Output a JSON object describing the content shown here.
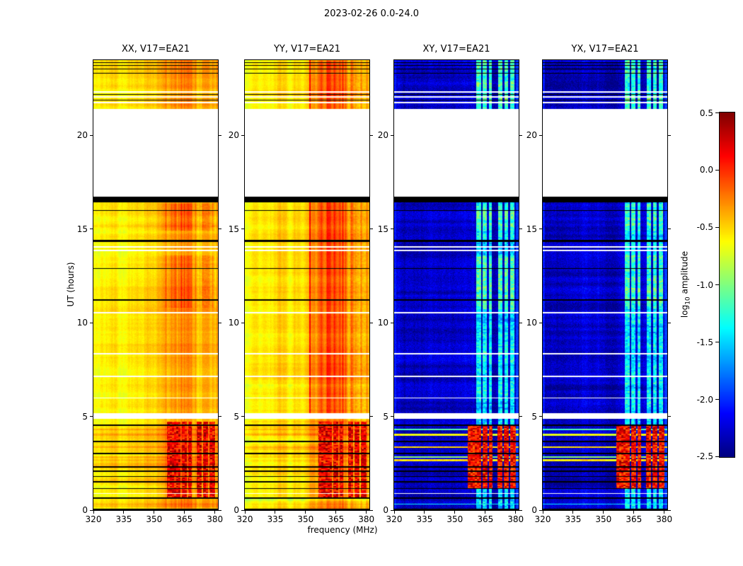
{
  "figure": {
    "title": "2023-02-26 0.0-24.0"
  },
  "chart_data": {
    "type": "heatmap",
    "title": "2023-02-26 0.0-24.0",
    "xlabel": "frequency (MHz)",
    "ylabel": "UT (hours)",
    "x_range_mhz": [
      320,
      381.5
    ],
    "y_range_hours": [
      0,
      24
    ],
    "x_ticks": [
      320,
      335,
      350,
      365,
      380
    ],
    "y_ticks": [
      0,
      5,
      10,
      15,
      20
    ],
    "no_data_color": "#ffffff",
    "flag_color": "#000000",
    "colorbar": {
      "label_prefix": "log",
      "label_sub": "10",
      "label_suffix": " amplitude",
      "colormap": "jet",
      "vmin": -2.5,
      "vmax": 0.5,
      "ticks": [
        {
          "v": 0.5,
          "label": "0.5"
        },
        {
          "v": 0.0,
          "label": "0.0"
        },
        {
          "v": -0.5,
          "label": "-0.5"
        },
        {
          "v": -1.0,
          "label": "-1.0"
        },
        {
          "v": -1.5,
          "label": "-1.5"
        },
        {
          "v": -2.0,
          "label": "-2.0"
        },
        {
          "v": -2.5,
          "label": "-2.5"
        }
      ]
    },
    "panels": [
      {
        "id": "xx",
        "title": "XX, V17=EA21",
        "kind": "parallel",
        "seed": 11,
        "base": -0.62,
        "tilt": 0.22,
        "band_gain": 0.26,
        "hot_ut": [
          [
            10.8,
            13.6
          ],
          [
            14.9,
            16.35
          ]
        ],
        "line352": false,
        "bottom_delta": 0.0
      },
      {
        "id": "yy",
        "title": "YY, V17=EA21",
        "kind": "parallel",
        "seed": 23,
        "base": -0.6,
        "tilt": 0.2,
        "band_gain": 0.28,
        "hot_ut": [
          [
            5.15,
            16.42
          ],
          [
            21.4,
            24.0
          ]
        ],
        "line352": true,
        "bottom_delta": -0.12
      },
      {
        "id": "xy",
        "title": "XY, V17=EA21",
        "kind": "cross",
        "seed": 37,
        "base": -2.3
      },
      {
        "id": "yx",
        "title": "YX, V17=EA21",
        "kind": "cross",
        "seed": 51,
        "base": -2.28
      }
    ],
    "segments": {
      "early": [
        0,
        4.85
      ],
      "main": [
        5.15,
        16.42
      ],
      "late": [
        21.4,
        24
      ]
    },
    "no_data_ut": [
      [
        4.85,
        5.15
      ],
      [
        16.72,
        21.4
      ],
      [
        0.85,
        0.9
      ],
      [
        5.95,
        6.0
      ],
      [
        7.1,
        7.16
      ],
      [
        8.28,
        8.36
      ],
      [
        10.48,
        10.56
      ],
      [
        13.82,
        13.9
      ],
      [
        14.02,
        14.08
      ],
      [
        21.72,
        21.8
      ],
      [
        22.02,
        22.1
      ],
      [
        22.28,
        22.36
      ]
    ],
    "flagged_ut": [
      [
        16.42,
        16.72
      ],
      [
        0.0,
        0.05
      ],
      [
        0.6,
        0.66
      ],
      [
        1.1,
        1.16
      ],
      [
        1.46,
        1.54
      ],
      [
        1.74,
        1.79
      ],
      [
        2.02,
        2.08
      ],
      [
        2.26,
        2.32
      ],
      [
        2.98,
        3.06
      ],
      [
        3.62,
        3.68
      ],
      [
        4.48,
        4.56
      ],
      [
        11.16,
        11.24
      ],
      [
        12.86,
        12.92
      ],
      [
        14.32,
        14.4
      ],
      [
        15.96,
        16.02
      ],
      [
        21.86,
        21.9
      ],
      [
        22.16,
        22.2
      ],
      [
        23.3,
        23.34
      ],
      [
        23.52,
        23.58
      ],
      [
        23.72,
        23.76
      ],
      [
        23.88,
        23.92
      ]
    ],
    "rfi_stripes_mhz": [
      [
        360.5,
        363.0
      ],
      [
        363.8,
        366.0
      ],
      [
        366.8,
        368.3
      ],
      [
        371.5,
        373.5
      ],
      [
        374.5,
        376.5
      ],
      [
        377.5,
        379.5
      ]
    ],
    "rfi_blocks_mhz": [
      [
        356.5,
        363.2
      ],
      [
        363.8,
        366.2
      ],
      [
        366.8,
        368.6
      ],
      [
        371.2,
        373.6
      ],
      [
        374.3,
        376.8
      ],
      [
        377.4,
        380.2
      ]
    ],
    "stripe_hot_ut": [
      [
        10.7,
        13.6
      ],
      [
        14.9,
        16.35
      ],
      [
        21.4,
        24.0
      ]
    ],
    "cross_hot_ut": [
      1.15,
      4.5
    ],
    "parallel_blocks_ut": [
      0.6,
      4.7
    ],
    "cross_streaks_ut": [
      [
        0.28,
        0.34,
        -1.35
      ],
      [
        2.6,
        2.7,
        -0.55
      ],
      [
        2.78,
        2.84,
        -0.95
      ],
      [
        3.3,
        3.4,
        -0.5
      ],
      [
        3.95,
        4.05,
        -0.65
      ],
      [
        4.25,
        4.32,
        -1.15
      ]
    ]
  }
}
